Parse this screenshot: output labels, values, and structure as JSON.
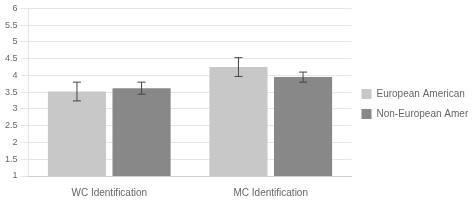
{
  "chart_data": {
    "type": "bar",
    "categories": [
      "WC Identification",
      "MC Identification"
    ],
    "series": [
      {
        "name": "European American",
        "color": "#c8c8c8",
        "values": [
          3.52,
          4.25
        ],
        "errors": [
          0.28,
          0.28
        ]
      },
      {
        "name": "Non-European American",
        "color": "#888888",
        "values": [
          3.62,
          3.95
        ],
        "errors": [
          0.18,
          0.15
        ]
      }
    ],
    "ylim": [
      1,
      6
    ],
    "yticks": [
      1,
      1.5,
      2,
      2.5,
      3,
      3.5,
      4,
      4.5,
      5,
      5.5,
      6
    ],
    "grid": true,
    "legend": "right"
  }
}
